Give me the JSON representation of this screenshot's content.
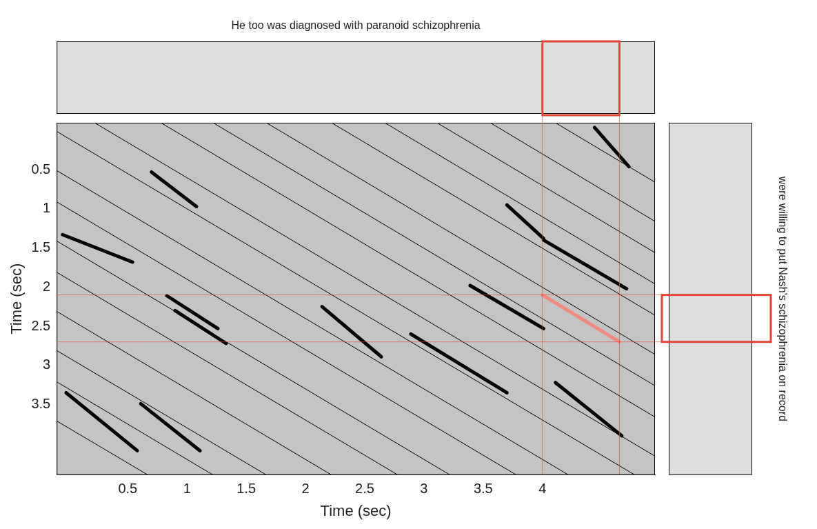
{
  "chart_data": {
    "type": "line",
    "title": "He too was diagnosed with paranoid schizophrenia",
    "right_label": "were willing to put Nash's schizophrenia on record",
    "x_label": "Time (sec)",
    "y_label": "Time (sec)",
    "xlim": [
      -0.1,
      4.95
    ],
    "ylim": [
      4.4,
      -0.1
    ],
    "xticks": [
      0.5,
      1,
      1.5,
      2,
      2.5,
      3,
      3.5,
      4
    ],
    "yticks": [
      0.5,
      1,
      1.5,
      2,
      2.5,
      3,
      3.5
    ],
    "grid": false,
    "series": [
      {
        "x": [
          4.11,
          4.95
        ],
        "values": [
          -0.1,
          0.66
        ],
        "color": "#000000",
        "line_style": "thin"
      },
      {
        "x": [
          3.56,
          4.95
        ],
        "values": [
          -0.1,
          1.16
        ],
        "color": "#000000",
        "line_style": "thin"
      },
      {
        "x": [
          3.11,
          4.95
        ],
        "values": [
          -0.1,
          1.56
        ],
        "color": "#000000",
        "line_style": "thin"
      },
      {
        "x": [
          2.67,
          4.95
        ],
        "values": [
          -0.1,
          1.96
        ],
        "color": "#000000",
        "line_style": "thin"
      },
      {
        "x": [
          2.22,
          4.95
        ],
        "values": [
          -0.1,
          2.36
        ],
        "color": "#000000",
        "line_style": "thin"
      },
      {
        "x": [
          1.67,
          4.95
        ],
        "values": [
          -0.1,
          2.86
        ],
        "color": "#000000",
        "line_style": "thin"
      },
      {
        "x": [
          1.22,
          4.95
        ],
        "values": [
          -0.1,
          3.26
        ],
        "color": "#000000",
        "line_style": "thin"
      },
      {
        "x": [
          0.78,
          4.95
        ],
        "values": [
          -0.1,
          3.66
        ],
        "color": "#000000",
        "line_style": "thin"
      },
      {
        "x": [
          0.22,
          4.95
        ],
        "values": [
          -0.1,
          4.16
        ],
        "color": "#000000",
        "line_style": "thin"
      },
      {
        "x": [
          -0.1,
          4.78
        ],
        "values": [
          0.01,
          4.4
        ],
        "color": "#000000",
        "line_style": "thin"
      },
      {
        "x": [
          -0.1,
          4.22
        ],
        "values": [
          0.51,
          4.4
        ],
        "color": "#000000",
        "line_style": "thin"
      },
      {
        "x": [
          -0.1,
          3.78
        ],
        "values": [
          0.91,
          4.4
        ],
        "color": "#000000",
        "line_style": "thin"
      },
      {
        "x": [
          -0.1,
          3.22
        ],
        "values": [
          1.41,
          4.4
        ],
        "color": "#000000",
        "line_style": "thin"
      },
      {
        "x": [
          -0.1,
          2.78
        ],
        "values": [
          1.81,
          4.4
        ],
        "color": "#000000",
        "line_style": "thin"
      },
      {
        "x": [
          -0.1,
          2.22
        ],
        "values": [
          2.31,
          4.4
        ],
        "color": "#000000",
        "line_style": "thin"
      },
      {
        "x": [
          -0.1,
          1.67
        ],
        "values": [
          2.81,
          4.4
        ],
        "color": "#000000",
        "line_style": "thin"
      },
      {
        "x": [
          -0.1,
          1.22
        ],
        "values": [
          3.21,
          4.4
        ],
        "color": "#000000",
        "line_style": "thin"
      },
      {
        "x": [
          -0.1,
          0.67
        ],
        "values": [
          3.71,
          4.4
        ],
        "color": "#000000",
        "line_style": "thin"
      },
      {
        "x": [
          0.7,
          1.08
        ],
        "values": [
          0.53,
          0.97
        ],
        "color": "#000000",
        "line_style": "thick"
      },
      {
        "x": [
          -0.05,
          0.54
        ],
        "values": [
          1.33,
          1.68
        ],
        "color": "#000000",
        "line_style": "thick"
      },
      {
        "x": [
          4.44,
          4.73
        ],
        "values": [
          -0.04,
          0.46
        ],
        "color": "#000000",
        "line_style": "thick"
      },
      {
        "x": [
          3.7,
          4.01
        ],
        "values": [
          0.95,
          1.38
        ],
        "color": "#000000",
        "line_style": "thick"
      },
      {
        "x": [
          4.01,
          4.71
        ],
        "values": [
          1.4,
          2.02
        ],
        "color": "#000000",
        "line_style": "thick"
      },
      {
        "x": [
          3.39,
          4.01
        ],
        "values": [
          1.98,
          2.53
        ],
        "color": "#000000",
        "line_style": "thick"
      },
      {
        "x": [
          0.83,
          1.26
        ],
        "values": [
          2.11,
          2.53
        ],
        "color": "#000000",
        "line_style": "thick"
      },
      {
        "x": [
          0.9,
          1.33
        ],
        "values": [
          2.3,
          2.72
        ],
        "color": "#000000",
        "line_style": "thick"
      },
      {
        "x": [
          2.14,
          2.64
        ],
        "values": [
          2.25,
          2.89
        ],
        "color": "#000000",
        "line_style": "thick"
      },
      {
        "x": [
          2.89,
          3.7
        ],
        "values": [
          2.6,
          3.35
        ],
        "color": "#000000",
        "line_style": "thick"
      },
      {
        "x": [
          4.11,
          4.67
        ],
        "values": [
          3.22,
          3.9
        ],
        "color": "#000000",
        "line_style": "thick"
      },
      {
        "x": [
          -0.02,
          0.58
        ],
        "values": [
          3.35,
          4.09
        ],
        "color": "#000000",
        "line_style": "thick"
      },
      {
        "x": [
          0.61,
          1.11
        ],
        "values": [
          3.49,
          4.09
        ],
        "color": "#000000",
        "line_style": "thick"
      },
      {
        "x": [
          4.0,
          4.65
        ],
        "values": [
          2.1,
          2.7
        ],
        "color": "#f08a80",
        "line_style": "thick"
      }
    ],
    "highlight": {
      "xlim": [
        4.0,
        4.65
      ],
      "ylim": [
        2.1,
        2.7
      ],
      "color": "#e0453a"
    }
  }
}
